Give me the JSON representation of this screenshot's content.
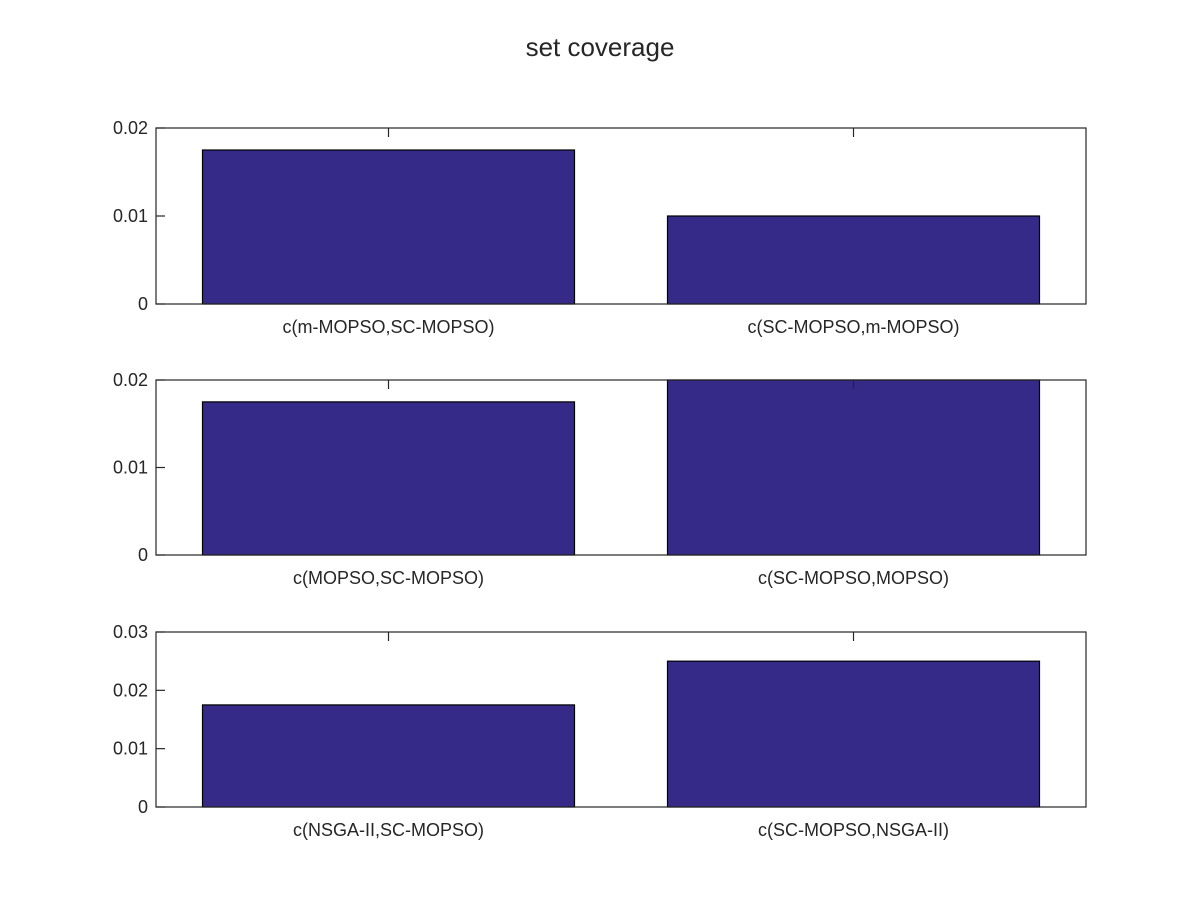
{
  "figure": {
    "title": "set coverage",
    "bar_color": "#352a87",
    "axis_color": "#262626",
    "background": "#ffffff"
  },
  "chart_data": [
    {
      "type": "bar",
      "categories": [
        "c(m-MOPSO,SC-MOPSO)",
        "c(SC-MOPSO,m-MOPSO)"
      ],
      "values": [
        0.0175,
        0.01
      ],
      "ylim": [
        0,
        0.02
      ],
      "yticks": [
        0,
        0.01,
        0.02
      ],
      "ytick_labels": [
        "0",
        "0.01",
        "0.02"
      ],
      "grid": false
    },
    {
      "type": "bar",
      "categories": [
        "c(MOPSO,SC-MOPSO)",
        "c(SC-MOPSO,MOPSO)"
      ],
      "values": [
        0.0175,
        0.02
      ],
      "ylim": [
        0,
        0.02
      ],
      "yticks": [
        0,
        0.01,
        0.02
      ],
      "ytick_labels": [
        "0",
        "0.01",
        "0.02"
      ],
      "grid": false
    },
    {
      "type": "bar",
      "categories": [
        "c(NSGA-II,SC-MOPSO)",
        "c(SC-MOPSO,NSGA-II)"
      ],
      "values": [
        0.0175,
        0.025
      ],
      "ylim": [
        0,
        0.03
      ],
      "yticks": [
        0,
        0.01,
        0.02,
        0.03
      ],
      "ytick_labels": [
        "0",
        "0.01",
        "0.02",
        "0.03"
      ],
      "grid": false
    }
  ]
}
